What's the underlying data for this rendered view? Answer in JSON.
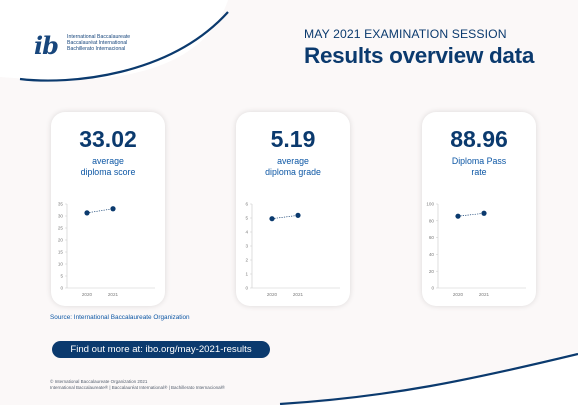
{
  "brand": {
    "logo_mark": "ib",
    "logo_lines": [
      "International Baccalaureate",
      "Baccalauréat International",
      "Bachillerato Internacional"
    ],
    "navy": "#0b3a6e",
    "blue": "#0d57a5"
  },
  "header": {
    "session": "MAY 2021 EXAMINATION SESSION",
    "title": "Results overview data"
  },
  "cards": [
    {
      "value": "33.02",
      "label_line1": "average",
      "label_line2": "diploma score"
    },
    {
      "value": "5.19",
      "label_line1": "average",
      "label_line2": "diploma grade"
    },
    {
      "value": "88.96",
      "label_line1": "Diploma Pass",
      "label_line2": "rate"
    }
  ],
  "chart_data": [
    {
      "type": "line",
      "categories": [
        "2020",
        "2021"
      ],
      "series": [
        {
          "values": [
            31.3,
            33.02
          ]
        }
      ],
      "ylim": [
        0,
        35
      ],
      "yticks": [
        0,
        5,
        10,
        15,
        20,
        25,
        30,
        35
      ],
      "grid": false,
      "line_style": "dotted"
    },
    {
      "type": "line",
      "categories": [
        "2020",
        "2021"
      ],
      "series": [
        {
          "values": [
            4.95,
            5.19
          ]
        }
      ],
      "ylim": [
        0,
        6
      ],
      "yticks": [
        0,
        1,
        2,
        3,
        4,
        5,
        6
      ],
      "grid": false,
      "line_style": "dotted"
    },
    {
      "type": "line",
      "categories": [
        "2020",
        "2021"
      ],
      "series": [
        {
          "values": [
            85.5,
            88.96
          ]
        }
      ],
      "ylim": [
        0,
        100
      ],
      "yticks": [
        0,
        20,
        40,
        60,
        80,
        100
      ],
      "grid": false,
      "line_style": "dotted"
    }
  ],
  "source": "Source: International Baccalaureate Organization",
  "cta": "Find out more at: ibo.org/may-2021-results",
  "footer": {
    "line1": "© International Baccalaureate Organization 2021",
    "line2": "International Baccalaureate® | Baccalauréat International® | Bachillerato Internacional®"
  }
}
